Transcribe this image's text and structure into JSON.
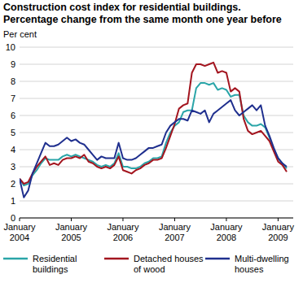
{
  "chart_data": {
    "type": "line",
    "title": "Construction cost index for residential buildings.",
    "subtitle": "Percentage change from the same month one year before",
    "y_label": "Per cent",
    "categories": [
      "January 2004",
      null,
      null,
      null,
      null,
      null,
      null,
      null,
      null,
      null,
      null,
      null,
      "January 2005",
      null,
      null,
      null,
      null,
      null,
      null,
      null,
      null,
      null,
      null,
      null,
      "January 2006",
      null,
      null,
      null,
      null,
      null,
      null,
      null,
      null,
      null,
      null,
      null,
      "January 2007",
      null,
      null,
      null,
      null,
      null,
      null,
      null,
      null,
      null,
      null,
      null,
      "January 2008",
      null,
      null,
      null,
      null,
      null,
      null,
      null,
      null,
      null,
      null,
      null,
      "January 2009",
      null,
      null
    ],
    "series": [
      {
        "name": "Residential buildings",
        "color": "#2aa5a8",
        "values": [
          2.3,
          1.9,
          2.0,
          2.5,
          2.8,
          3.2,
          3.5,
          3.4,
          3.4,
          3.4,
          3.6,
          3.7,
          3.6,
          3.7,
          3.6,
          3.5,
          3.4,
          3.3,
          3.1,
          3.0,
          3.1,
          3.0,
          3.2,
          3.8,
          3.0,
          3.0,
          2.9,
          2.9,
          3.0,
          3.2,
          3.3,
          3.5,
          3.5,
          3.6,
          4.4,
          5.0,
          5.4,
          5.6,
          6.2,
          6.3,
          6.3,
          7.6,
          7.9,
          7.9,
          7.8,
          7.9,
          7.5,
          7.6,
          7.5,
          7.1,
          7.2,
          7.2,
          6.0,
          5.6,
          5.4,
          5.4,
          5.5,
          5.3,
          4.7,
          4.0,
          3.5,
          3.2,
          2.9
        ]
      },
      {
        "name": "Detached houses of wood",
        "color": "#a3151f",
        "values": [
          2.3,
          2.0,
          2.1,
          2.6,
          3.0,
          3.3,
          3.6,
          3.1,
          3.2,
          3.1,
          3.4,
          3.5,
          3.5,
          3.6,
          3.5,
          3.7,
          3.3,
          3.2,
          3.0,
          2.9,
          3.0,
          2.9,
          3.1,
          3.6,
          2.8,
          2.7,
          2.6,
          2.8,
          2.9,
          3.1,
          3.2,
          3.4,
          3.4,
          3.5,
          4.1,
          4.8,
          5.5,
          6.4,
          6.6,
          6.7,
          8.5,
          9.0,
          9.0,
          8.9,
          9.0,
          9.1,
          8.5,
          8.6,
          8.5,
          7.4,
          7.6,
          7.4,
          5.8,
          5.1,
          4.9,
          5.0,
          5.1,
          4.8,
          4.5,
          3.9,
          3.3,
          3.1,
          2.7
        ]
      },
      {
        "name": "Multi-dwelling houses",
        "color": "#1f2f8e",
        "values": [
          2.3,
          1.2,
          1.6,
          2.6,
          3.2,
          3.8,
          4.4,
          4.2,
          4.2,
          4.3,
          4.5,
          4.7,
          4.5,
          4.6,
          4.4,
          4.3,
          4.0,
          3.7,
          3.4,
          3.6,
          3.5,
          3.5,
          3.5,
          4.4,
          3.5,
          3.4,
          3.4,
          3.5,
          3.7,
          3.9,
          4.1,
          4.1,
          4.2,
          4.3,
          5.0,
          5.4,
          5.6,
          5.8,
          5.8,
          5.7,
          6.3,
          6.2,
          6.1,
          6.3,
          5.6,
          6.1,
          6.3,
          6.5,
          6.7,
          6.9,
          6.3,
          6.0,
          6.2,
          6.4,
          6.6,
          6.3,
          6.6,
          5.4,
          4.8,
          4.1,
          3.5,
          3.2,
          3.0
        ]
      }
    ],
    "ylim": [
      0,
      10
    ],
    "yticks": [
      0,
      1,
      2,
      3,
      4,
      5,
      6,
      7,
      8,
      9,
      10
    ],
    "grid": true,
    "legend": "bottom"
  }
}
